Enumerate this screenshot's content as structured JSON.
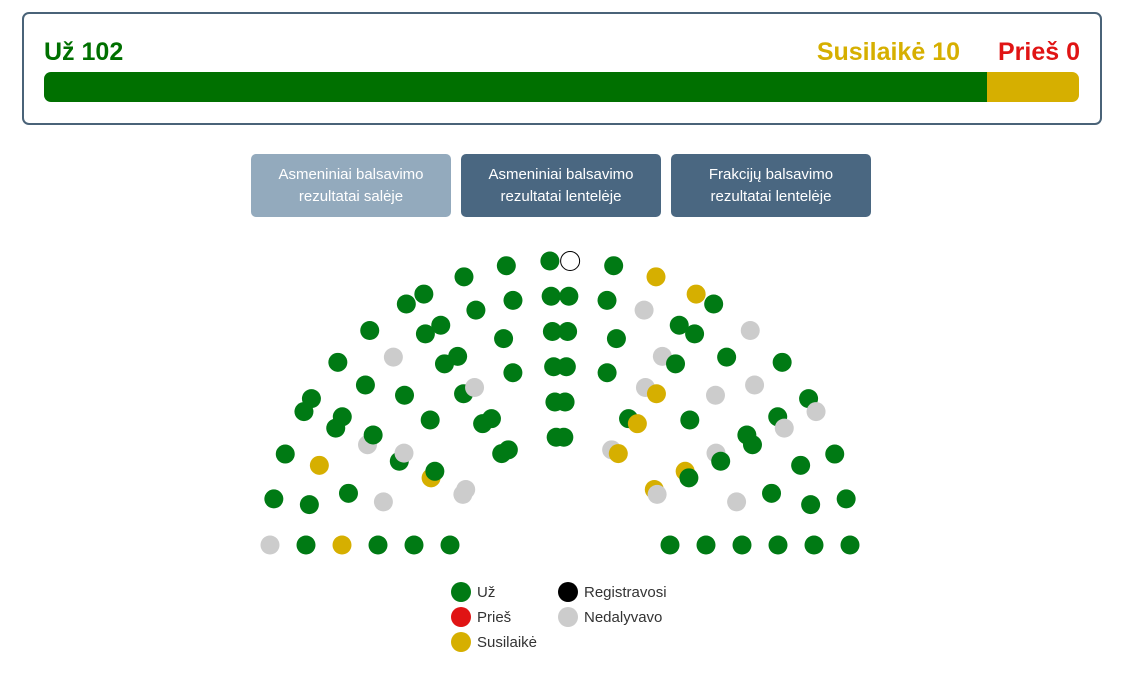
{
  "summary": {
    "for": {
      "label": "Už",
      "value": 102,
      "color": "#007000"
    },
    "abstain": {
      "label": "Susilaikė",
      "value": 10,
      "color": "#d6af00"
    },
    "against": {
      "label": "Prieš",
      "value": 0,
      "color": "#e01414"
    }
  },
  "buttons": [
    "Asmeniniai balsavimo rezultatai salėje",
    "Asmeniniai balsavimo rezultatai lentelėje",
    "Frakcijų balsavimo rezultatai lentelėje"
  ],
  "legend": [
    {
      "label": "Už",
      "color": "#007a14"
    },
    {
      "label": "Prieš",
      "color": "#e01414"
    },
    {
      "label": "Susilaikė",
      "color": "#d6af00"
    },
    {
      "label": "Registravosi",
      "color": "#000000"
    },
    {
      "label": "Nedalyvavo",
      "color": "#cccccc"
    }
  ]
}
